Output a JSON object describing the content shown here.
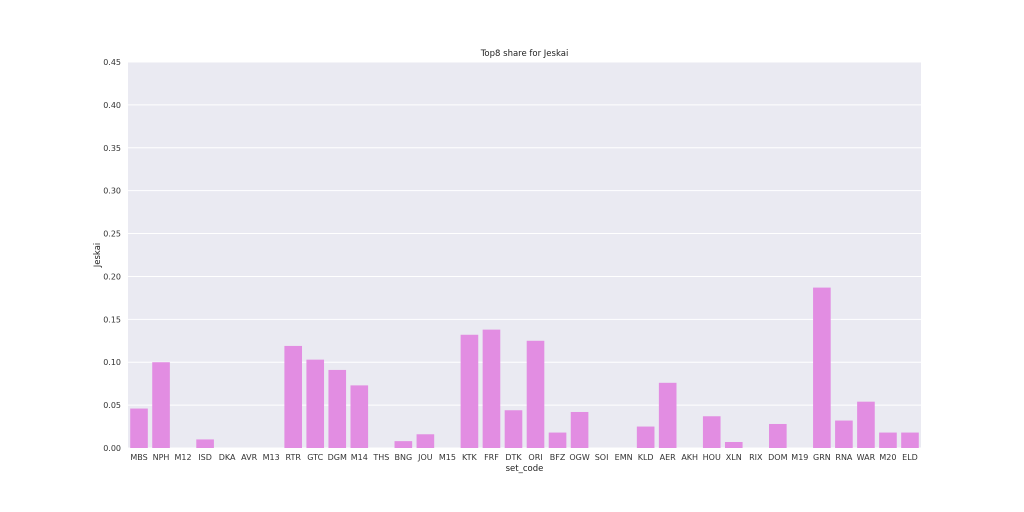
{
  "chart_data": {
    "type": "bar",
    "title": "Top8 share for Jeskai",
    "xlabel": "set_code",
    "ylabel": "Jeskai",
    "ylim": [
      0,
      0.45
    ],
    "yticks": [
      "0.00",
      "0.05",
      "0.10",
      "0.15",
      "0.20",
      "0.25",
      "0.30",
      "0.35",
      "0.40",
      "0.45"
    ],
    "grid": true,
    "bar_color": "#e28de2",
    "background_color": "#eaeaf2",
    "categories": [
      "MBS",
      "NPH",
      "M12",
      "ISD",
      "DKA",
      "AVR",
      "M13",
      "RTR",
      "GTC",
      "DGM",
      "M14",
      "THS",
      "BNG",
      "JOU",
      "M15",
      "KTK",
      "FRF",
      "DTK",
      "ORI",
      "BFZ",
      "OGW",
      "SOI",
      "EMN",
      "KLD",
      "AER",
      "AKH",
      "HOU",
      "XLN",
      "RIX",
      "DOM",
      "M19",
      "GRN",
      "RNA",
      "WAR",
      "M20",
      "ELD"
    ],
    "values": [
      0.046,
      0.1,
      0.0,
      0.01,
      0.0,
      0.0,
      0.0,
      0.119,
      0.103,
      0.091,
      0.073,
      0.0,
      0.008,
      0.016,
      0.0,
      0.132,
      0.138,
      0.044,
      0.125,
      0.018,
      0.042,
      0.0,
      0.0,
      0.025,
      0.076,
      0.0,
      0.037,
      0.007,
      0.0,
      0.028,
      0.0,
      0.187,
      0.032,
      0.054,
      0.018,
      0.018
    ]
  }
}
